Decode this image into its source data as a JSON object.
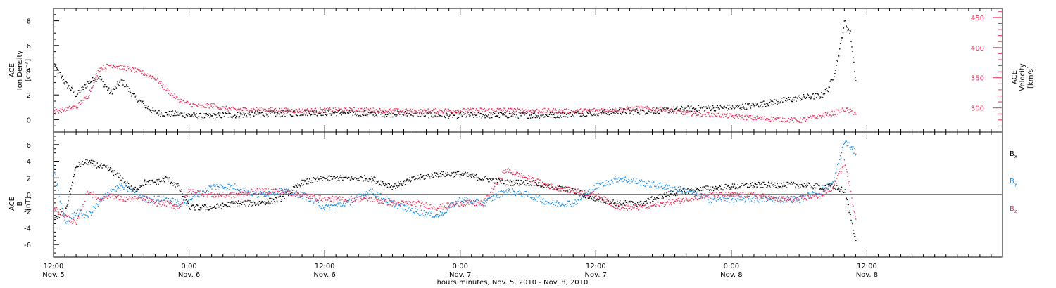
{
  "colors": {
    "black": "#000000",
    "pink": "#e8325a",
    "blue": "#1f8fe6"
  },
  "x_axis": {
    "title": "hours:minutes, Nov.  5, 2010 - Nov.  8, 2010",
    "range_hours": [
      0,
      84
    ],
    "major_ticks": [
      {
        "h": 0,
        "time": "12:00",
        "date": "Nov. 5"
      },
      {
        "h": 12,
        "time": "0:00",
        "date": "Nov. 6"
      },
      {
        "h": 24,
        "time": "12:00",
        "date": "Nov. 6"
      },
      {
        "h": 36,
        "time": "0:00",
        "date": "Nov. 7"
      },
      {
        "h": 48,
        "time": "12:00",
        "date": "Nov. 7"
      },
      {
        "h": 60,
        "time": "0:00",
        "date": "Nov. 8"
      },
      {
        "h": 72,
        "time": "12:00",
        "date": "Nov. 8"
      }
    ]
  },
  "chart_data": [
    {
      "type": "scatter",
      "panel": "top",
      "ylabel_left": [
        "ACE",
        "Ion Density",
        "[cm⁻³]"
      ],
      "ylabel_right": [
        "ACE",
        "Velocity",
        "[km/s]"
      ],
      "ylim_left": [
        -1,
        9
      ],
      "yticks_left": [
        0,
        2,
        4,
        6,
        8
      ],
      "ylim_right": [
        260,
        465
      ],
      "yticks_right": [
        300,
        350,
        400,
        450
      ],
      "series": [
        {
          "axis": "left",
          "color": "black",
          "x_hours": [
            0,
            1,
            2,
            3,
            4,
            5,
            6,
            7,
            8,
            9,
            10,
            11,
            12,
            13,
            14,
            15,
            16,
            18,
            20,
            22,
            24,
            26,
            28,
            30,
            32,
            34,
            36,
            38,
            40,
            42,
            44,
            46,
            48,
            50,
            52,
            54,
            56,
            58,
            60,
            62,
            64,
            66,
            68,
            68.5,
            69,
            69.5,
            70,
            70.5,
            71
          ],
          "values": [
            4.5,
            3.0,
            2.0,
            3.0,
            3.5,
            2.2,
            3.2,
            2.0,
            1.2,
            0.6,
            0.5,
            0.5,
            0.4,
            0.3,
            0.3,
            0.4,
            0.4,
            0.5,
            0.5,
            0.6,
            0.6,
            0.6,
            0.5,
            0.5,
            0.5,
            0.4,
            0.4,
            0.4,
            0.4,
            0.4,
            0.4,
            0.5,
            0.6,
            0.7,
            0.7,
            0.8,
            0.9,
            1.0,
            1.0,
            1.2,
            1.5,
            1.8,
            2.0,
            2.5,
            3.5,
            5.5,
            8.0,
            7.0,
            3.0
          ]
        },
        {
          "axis": "right",
          "color": "pink",
          "x_hours": [
            0,
            1,
            2,
            3,
            4,
            5,
            6,
            7,
            8,
            9,
            10,
            11,
            12,
            13,
            14,
            15,
            16,
            18,
            20,
            22,
            24,
            26,
            28,
            30,
            32,
            34,
            36,
            38,
            40,
            42,
            44,
            46,
            48,
            50,
            52,
            54,
            56,
            58,
            60,
            62,
            64,
            66,
            68,
            69,
            70,
            71
          ],
          "values": [
            295,
            298,
            303,
            320,
            365,
            372,
            368,
            364,
            358,
            350,
            330,
            315,
            307,
            303,
            305,
            300,
            298,
            298,
            297,
            296,
            297,
            298,
            297,
            296,
            295,
            296,
            296,
            297,
            297,
            296,
            296,
            295,
            297,
            298,
            300,
            298,
            292,
            290,
            287,
            284,
            282,
            280,
            288,
            292,
            298,
            292
          ]
        }
      ]
    },
    {
      "type": "scatter",
      "panel": "bottom",
      "ylabel_left": [
        "ACE",
        "B",
        "[nT]"
      ],
      "ylim": [
        -7.5,
        7.5
      ],
      "yticks": [
        -6,
        -4,
        -2,
        0,
        2,
        4,
        6
      ],
      "legend": [
        {
          "label": "B",
          "sub": "x",
          "color": "black"
        },
        {
          "label": "B",
          "sub": "y",
          "color": "blue"
        },
        {
          "label": "B",
          "sub": "z",
          "color": "pink"
        }
      ],
      "series": [
        {
          "name": "Bx",
          "color": "black",
          "x_hours": [
            0,
            1,
            2,
            3,
            4,
            5,
            6,
            7,
            8,
            9,
            10,
            11,
            12,
            14,
            16,
            18,
            20,
            22,
            24,
            26,
            28,
            30,
            32,
            34,
            36,
            38,
            40,
            42,
            44,
            46,
            48,
            50,
            52,
            54,
            56,
            58,
            60,
            62,
            64,
            66,
            68,
            69,
            70,
            71
          ],
          "values": [
            -3.0,
            -2.0,
            3.5,
            4.0,
            3.5,
            3.0,
            2.0,
            0.5,
            1.5,
            1.5,
            2.0,
            1.0,
            -1.5,
            -1.5,
            -1.0,
            -1.0,
            -0.5,
            1.5,
            2.0,
            2.0,
            2.0,
            1.0,
            2.0,
            2.5,
            2.5,
            2.0,
            1.5,
            1.5,
            1.0,
            0.5,
            -0.5,
            -1.0,
            -1.0,
            0.0,
            0.5,
            0.8,
            1.0,
            1.2,
            1.2,
            1.2,
            1.0,
            1.0,
            0.5,
            -5.5
          ]
        },
        {
          "name": "By",
          "color": "blue",
          "x_hours": [
            0,
            1,
            2,
            3,
            4,
            5,
            6,
            7,
            8,
            9,
            10,
            11,
            12,
            14,
            16,
            18,
            20,
            22,
            24,
            26,
            28,
            30,
            32,
            34,
            36,
            38,
            40,
            42,
            44,
            46,
            48,
            50,
            52,
            54,
            56,
            58,
            60,
            62,
            64,
            66,
            68,
            69,
            70,
            71
          ],
          "values": [
            3.0,
            -3.5,
            -2.0,
            -2.5,
            -1.0,
            0.5,
            1.0,
            0.5,
            -0.5,
            -0.5,
            -0.5,
            -1.0,
            -0.5,
            1.0,
            1.0,
            0.0,
            0.5,
            0.0,
            -1.5,
            -1.0,
            0.5,
            -1.0,
            -2.0,
            -2.5,
            -0.5,
            -1.0,
            0.5,
            0.0,
            -1.0,
            -1.0,
            1.0,
            2.0,
            1.5,
            1.0,
            0.5,
            -0.5,
            -0.5,
            -0.5,
            -0.5,
            -0.5,
            0.5,
            1.5,
            6.5,
            5.0
          ]
        },
        {
          "name": "Bz",
          "color": "pink",
          "x_hours": [
            0,
            1,
            2,
            3,
            4,
            5,
            6,
            7,
            8,
            9,
            10,
            11,
            12,
            14,
            16,
            18,
            20,
            22,
            24,
            26,
            28,
            30,
            32,
            34,
            36,
            38,
            40,
            42,
            44,
            46,
            48,
            50,
            52,
            54,
            56,
            58,
            60,
            62,
            64,
            66,
            68,
            69,
            70,
            71
          ],
          "values": [
            -1.5,
            -2.5,
            -3.5,
            0.5,
            -0.5,
            0.0,
            -0.5,
            -0.5,
            -0.5,
            -1.0,
            -1.0,
            -1.5,
            0.5,
            0.0,
            0.0,
            0.5,
            0.5,
            0.0,
            -0.5,
            -0.5,
            -0.5,
            -1.0,
            -1.0,
            -1.5,
            -1.0,
            -1.0,
            3.0,
            2.0,
            1.0,
            0.5,
            0.0,
            -1.5,
            -1.5,
            -1.0,
            -0.5,
            0.0,
            0.0,
            0.0,
            -0.5,
            -0.5,
            0.0,
            1.0,
            4.0,
            -3.0
          ]
        }
      ]
    }
  ]
}
